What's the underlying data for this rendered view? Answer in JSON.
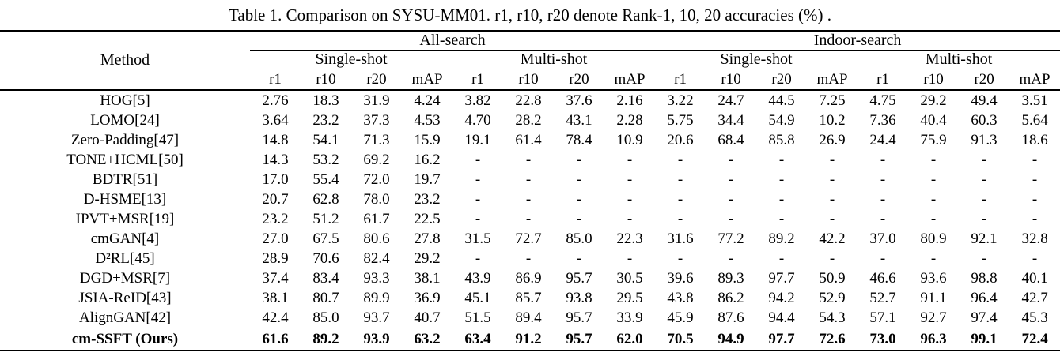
{
  "title": "Table 1. Comparison on SYSU-MM01. r1, r10, r20 denote Rank-1, 10, 20 accuracies (%) .",
  "colors": {
    "text": "#000000",
    "background": "#ffffff",
    "rule": "#000000"
  },
  "table": {
    "method_header": "Method",
    "group_headers": [
      "All-search",
      "Indoor-search"
    ],
    "shot_headers": [
      "Single-shot",
      "Multi-shot",
      "Single-shot",
      "Multi-shot"
    ],
    "metric_headers": [
      "r1",
      "r10",
      "r20",
      "mAP",
      "r1",
      "r10",
      "r20",
      "mAP",
      "r1",
      "r10",
      "r20",
      "mAP",
      "r1",
      "r10",
      "r20",
      "mAP"
    ],
    "rows": [
      {
        "method": "HOG[5]",
        "bold": false,
        "cells": [
          "2.76",
          "18.3",
          "31.9",
          "4.24",
          "3.82",
          "22.8",
          "37.6",
          "2.16",
          "3.22",
          "24.7",
          "44.5",
          "7.25",
          "4.75",
          "29.2",
          "49.4",
          "3.51"
        ]
      },
      {
        "method": "LOMO[24]",
        "bold": false,
        "cells": [
          "3.64",
          "23.2",
          "37.3",
          "4.53",
          "4.70",
          "28.2",
          "43.1",
          "2.28",
          "5.75",
          "34.4",
          "54.9",
          "10.2",
          "7.36",
          "40.4",
          "60.3",
          "5.64"
        ]
      },
      {
        "method": "Zero-Padding[47]",
        "bold": false,
        "cells": [
          "14.8",
          "54.1",
          "71.3",
          "15.9",
          "19.1",
          "61.4",
          "78.4",
          "10.9",
          "20.6",
          "68.4",
          "85.8",
          "26.9",
          "24.4",
          "75.9",
          "91.3",
          "18.6"
        ]
      },
      {
        "method": "TONE+HCML[50]",
        "bold": false,
        "cells": [
          "14.3",
          "53.2",
          "69.2",
          "16.2",
          "-",
          "-",
          "-",
          "-",
          "-",
          "-",
          "-",
          "-",
          "-",
          "-",
          "-",
          "-"
        ]
      },
      {
        "method": "BDTR[51]",
        "bold": false,
        "cells": [
          "17.0",
          "55.4",
          "72.0",
          "19.7",
          "-",
          "-",
          "-",
          "-",
          "-",
          "-",
          "-",
          "-",
          "-",
          "-",
          "-",
          "-"
        ]
      },
      {
        "method": "D-HSME[13]",
        "bold": false,
        "cells": [
          "20.7",
          "62.8",
          "78.0",
          "23.2",
          "-",
          "-",
          "-",
          "-",
          "-",
          "-",
          "-",
          "-",
          "-",
          "-",
          "-",
          "-"
        ]
      },
      {
        "method": "IPVT+MSR[19]",
        "bold": false,
        "cells": [
          "23.2",
          "51.2",
          "61.7",
          "22.5",
          "-",
          "-",
          "-",
          "-",
          "-",
          "-",
          "-",
          "-",
          "-",
          "-",
          "-",
          "-"
        ]
      },
      {
        "method": "cmGAN[4]",
        "bold": false,
        "cells": [
          "27.0",
          "67.5",
          "80.6",
          "27.8",
          "31.5",
          "72.7",
          "85.0",
          "22.3",
          "31.6",
          "77.2",
          "89.2",
          "42.2",
          "37.0",
          "80.9",
          "92.1",
          "32.8"
        ]
      },
      {
        "method": "D²RL[45]",
        "bold": false,
        "cells": [
          "28.9",
          "70.6",
          "82.4",
          "29.2",
          "-",
          "-",
          "-",
          "-",
          "-",
          "-",
          "-",
          "-",
          "-",
          "-",
          "-",
          "-"
        ]
      },
      {
        "method": "DGD+MSR[7]",
        "bold": false,
        "cells": [
          "37.4",
          "83.4",
          "93.3",
          "38.1",
          "43.9",
          "86.9",
          "95.7",
          "30.5",
          "39.6",
          "89.3",
          "97.7",
          "50.9",
          "46.6",
          "93.6",
          "98.8",
          "40.1"
        ]
      },
      {
        "method": "JSIA-ReID[43]",
        "bold": false,
        "cells": [
          "38.1",
          "80.7",
          "89.9",
          "36.9",
          "45.1",
          "85.7",
          "93.8",
          "29.5",
          "43.8",
          "86.2",
          "94.2",
          "52.9",
          "52.7",
          "91.1",
          "96.4",
          "42.7"
        ]
      },
      {
        "method": "AlignGAN[42]",
        "bold": false,
        "cells": [
          "42.4",
          "85.0",
          "93.7",
          "40.7",
          "51.5",
          "89.4",
          "95.7",
          "33.9",
          "45.9",
          "87.6",
          "94.4",
          "54.3",
          "57.1",
          "92.7",
          "97.4",
          "45.3"
        ]
      },
      {
        "method": "cm-SSFT (Ours)",
        "bold": true,
        "cells": [
          "61.6",
          "89.2",
          "93.9",
          "63.2",
          "63.4",
          "91.2",
          "95.7",
          "62.0",
          "70.5",
          "94.9",
          "97.7",
          "72.6",
          "73.0",
          "96.3",
          "99.1",
          "72.4"
        ]
      }
    ]
  }
}
